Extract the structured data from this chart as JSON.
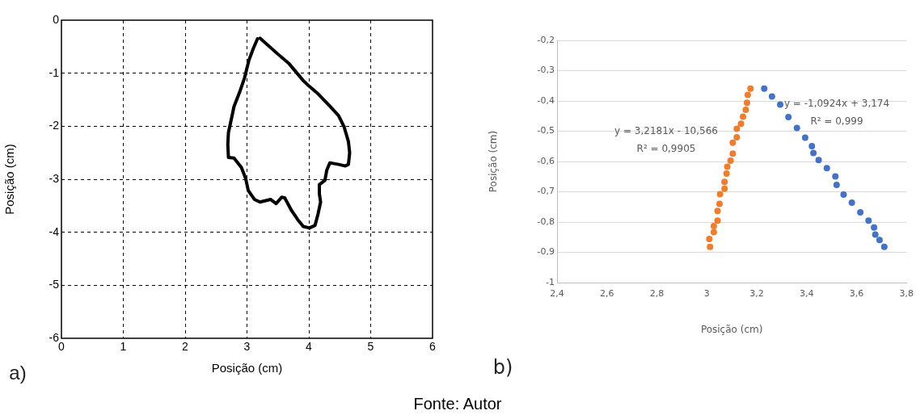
{
  "chart_data": [
    {
      "type": "line",
      "xlabel": "Posição (cm)",
      "ylabel": "Posição (cm)",
      "xlim": [
        0,
        6
      ],
      "ylim": [
        -6,
        0
      ],
      "xticks": [
        0,
        1,
        2,
        3,
        4,
        5,
        6
      ],
      "yticks": [
        -6,
        -5,
        -4,
        -3,
        -2,
        -1,
        0
      ],
      "grid": true,
      "marker": "none",
      "line_style": "solid",
      "annotations": [
        "a)"
      ],
      "series": [
        {
          "color": "#000000",
          "x": [
            3.21,
            3.49,
            3.68,
            3.91,
            4.01,
            4.15,
            4.33,
            4.48,
            4.57,
            4.64,
            4.66,
            4.64,
            4.59,
            4.48,
            4.34,
            4.29,
            4.26,
            4.17,
            4.17,
            4.19,
            4.15,
            4.1,
            4.01,
            3.91,
            3.82,
            3.72,
            3.61,
            3.56,
            3.47,
            3.38,
            3.21,
            3.12,
            3.02,
            2.98,
            2.91,
            2.79,
            2.7,
            2.69,
            2.7,
            2.75,
            2.79,
            2.88,
            2.96,
            3.03,
            3.1,
            3.17
          ],
          "values": [
            -0.34,
            -0.63,
            -0.82,
            -1.14,
            -1.25,
            -1.39,
            -1.61,
            -1.8,
            -2.01,
            -2.29,
            -2.5,
            -2.72,
            -2.75,
            -2.72,
            -2.69,
            -2.83,
            -3.02,
            -3.1,
            -3.27,
            -3.43,
            -3.65,
            -3.87,
            -3.92,
            -3.89,
            -3.76,
            -3.59,
            -3.35,
            -3.34,
            -3.46,
            -3.38,
            -3.43,
            -3.38,
            -3.21,
            -2.99,
            -2.78,
            -2.6,
            -2.59,
            -2.34,
            -2.12,
            -1.85,
            -1.63,
            -1.36,
            -1.09,
            -0.76,
            -0.54,
            -0.35
          ]
        }
      ]
    },
    {
      "type": "scatter",
      "xlabel": "Posição (cm)",
      "ylabel": "Posição (cm)",
      "xlim": [
        2.4,
        3.8
      ],
      "ylim": [
        -1,
        -0.2
      ],
      "xticks": [
        {
          "value": 2.4,
          "label": "2,4"
        },
        {
          "value": 2.6,
          "label": "2,6"
        },
        {
          "value": 2.8,
          "label": "2,8"
        },
        {
          "value": 3,
          "label": "3"
        },
        {
          "value": 3.2,
          "label": "3,2"
        },
        {
          "value": 3.4,
          "label": "3,4"
        },
        {
          "value": 3.6,
          "label": "3,6"
        },
        {
          "value": 3.8,
          "label": "3,8"
        }
      ],
      "yticks": [
        {
          "value": -1,
          "label": "-1"
        },
        {
          "value": -0.9,
          "label": "-0,9"
        },
        {
          "value": -0.8,
          "label": "-0,8"
        },
        {
          "value": -0.7,
          "label": "-0,7"
        },
        {
          "value": -0.6,
          "label": "-0,6"
        },
        {
          "value": -0.5,
          "label": "-0,5"
        },
        {
          "value": -0.4,
          "label": "-0,4"
        },
        {
          "value": -0.3,
          "label": "-0,3"
        },
        {
          "value": -0.2,
          "label": "-0,2"
        }
      ],
      "grid": "y",
      "marker": "circle",
      "annotations": [
        "y = -1,0924x + 3,174",
        "R² = 0,999",
        "y = 3,2181x - 10,566",
        "R² = 0,9905",
        "b)",
        "Fonte: Autor"
      ],
      "series": [
        {
          "color": "#4472c4",
          "x": [
            3.23,
            3.261,
            3.294,
            3.327,
            3.361,
            3.394,
            3.421,
            3.427,
            3.448,
            3.481,
            3.515,
            3.52,
            3.548,
            3.581,
            3.615,
            3.648,
            3.67,
            3.675,
            3.692,
            3.711
          ],
          "values": [
            -0.359,
            -0.385,
            -0.412,
            -0.453,
            -0.489,
            -0.521,
            -0.549,
            -0.572,
            -0.595,
            -0.622,
            -0.649,
            -0.677,
            -0.709,
            -0.736,
            -0.768,
            -0.795,
            -0.818,
            -0.841,
            -0.859,
            -0.882
          ]
        },
        {
          "color": "#ed7d31",
          "x": [
            3.013,
            3.01,
            3.028,
            3.028,
            3.043,
            3.043,
            3.051,
            3.053,
            3.071,
            3.071,
            3.079,
            3.082,
            3.095,
            3.104,
            3.104,
            3.12,
            3.12,
            3.137,
            3.145,
            3.156,
            3.161,
            3.164,
            3.175
          ],
          "values": [
            -0.882,
            -0.856,
            -0.833,
            -0.813,
            -0.795,
            -0.763,
            -0.74,
            -0.708,
            -0.69,
            -0.667,
            -0.64,
            -0.617,
            -0.597,
            -0.574,
            -0.538,
            -0.52,
            -0.492,
            -0.475,
            -0.452,
            -0.429,
            -0.406,
            -0.38,
            -0.359
          ]
        }
      ]
    }
  ]
}
